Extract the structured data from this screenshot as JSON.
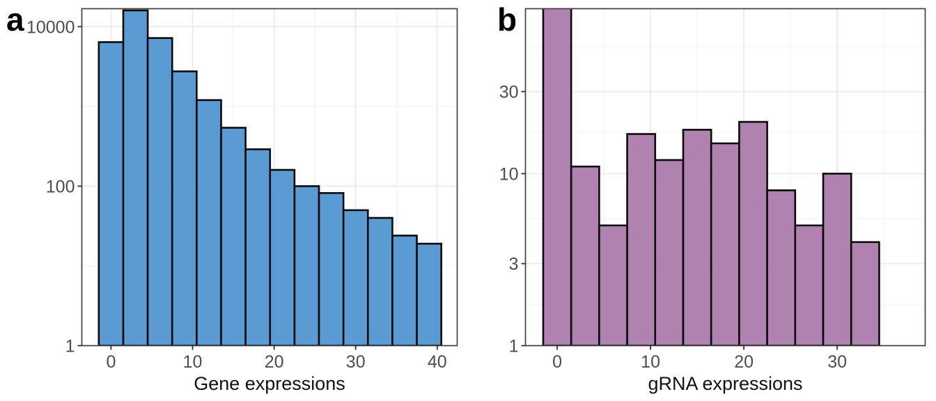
{
  "figure": {
    "background": "#FFFFFF",
    "panel_background": "#FFFFFF",
    "panel_border_color": "#3F3F3F",
    "grid_major_color": "#E9E9E9",
    "grid_minor_color": "#F4F4F4",
    "axis_tick_color": "#333333",
    "tick_label_color": "#4D4D4D",
    "axis_title_color": "#111111"
  },
  "chart_data": [
    {
      "panel_label": "a",
      "type": "bar",
      "subtype": "histogram",
      "xlabel": "Gene expressions",
      "ylabel": "",
      "x_scale": "linear",
      "y_scale": "log10",
      "bar_fill": "#4E93D0",
      "bar_stroke": "#0A0A0A",
      "bin_start": -1.5,
      "bin_width": 3,
      "bin_centers": [
        0,
        3,
        6,
        9,
        12,
        15,
        18,
        21,
        24,
        27,
        30,
        33,
        36,
        39
      ],
      "counts": [
        6400,
        16000,
        7200,
        2750,
        1200,
        540,
        290,
        160,
        100,
        82,
        50,
        40,
        24,
        19
      ],
      "clipped_bins": [],
      "x_ticks": {
        "values": [
          0,
          10,
          20,
          30,
          40
        ],
        "labels": [
          "0",
          "10",
          "20",
          "30",
          "40"
        ]
      },
      "y_ticks": {
        "values": [
          1,
          100,
          10000
        ],
        "labels": [
          "1",
          "100",
          "10000"
        ]
      },
      "x_minor": [
        5,
        15,
        25,
        35
      ],
      "y_minor": [
        10,
        1000
      ],
      "xlim": [
        -3.58,
        42.45
      ],
      "ylim": [
        1,
        16800
      ],
      "grid": true,
      "legend": "none"
    },
    {
      "panel_label": "b",
      "type": "bar",
      "subtype": "histogram",
      "xlabel": "gRNA expressions",
      "ylabel": "",
      "x_scale": "linear",
      "y_scale": "log10",
      "bar_fill": "#AA78AA",
      "bar_stroke": "#0A0A0A",
      "bin_start": -1.5,
      "bin_width": 3,
      "bin_centers": [
        0,
        3,
        6,
        9,
        12,
        15,
        18,
        21,
        24,
        27,
        30,
        33
      ],
      "counts": [
        95,
        11,
        5,
        17,
        12,
        18,
        15,
        20,
        8,
        5,
        10,
        4
      ],
      "clipped_bins": [
        0
      ],
      "x_ticks": {
        "values": [
          0,
          10,
          20,
          30
        ],
        "labels": [
          "0",
          "10",
          "20",
          "30"
        ]
      },
      "y_ticks": {
        "values": [
          1,
          3,
          10,
          30
        ],
        "labels": [
          "1",
          "3",
          "10",
          "30"
        ]
      },
      "x_minor": [
        5,
        15,
        25,
        35
      ],
      "y_minor": [
        1.73,
        5.48,
        17.32,
        54.77
      ],
      "xlim": [
        -3.4,
        39.43
      ],
      "ylim": [
        1,
        91
      ],
      "grid": true,
      "legend": "none"
    }
  ]
}
